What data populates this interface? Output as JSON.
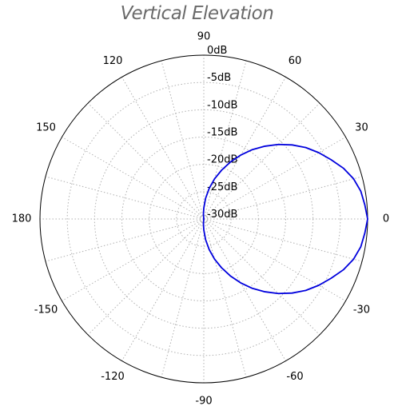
{
  "chart_data": {
    "type": "polar-line",
    "title": "Vertical Elevation",
    "angle_unit": "degrees",
    "angle_ticks": [
      "0",
      "30",
      "60",
      "90",
      "120",
      "150",
      "180",
      "-150",
      "-120",
      "-90",
      "-60",
      "-30"
    ],
    "angle_tick_values": [
      0,
      30,
      60,
      90,
      120,
      150,
      180,
      -150,
      -120,
      -90,
      -60,
      -30
    ],
    "radial_unit": "dB",
    "radial_range": [
      -30,
      0
    ],
    "radial_ticks": [
      "0dB",
      "-5dB",
      "-10dB",
      "-15dB",
      "-20dB",
      "-25dB",
      "-30dB"
    ],
    "radial_tick_values": [
      0,
      -5,
      -10,
      -15,
      -20,
      -25,
      -30
    ],
    "grid": true,
    "series": [
      {
        "color": "#0000dd",
        "angle_deg": [
          0,
          5,
          10,
          15,
          20,
          25,
          30,
          35,
          40,
          45,
          50,
          55,
          60,
          65,
          70,
          75,
          80,
          85,
          90,
          95,
          100,
          105,
          110,
          115,
          120,
          125,
          130,
          135,
          140,
          145,
          150,
          155,
          160,
          165,
          170,
          175,
          180,
          -175,
          -170,
          -165,
          -160,
          -155,
          -150,
          -145,
          -140,
          -135,
          -130,
          -125,
          -120,
          -115,
          -110,
          -105,
          -100,
          -95,
          -90,
          -85,
          -80,
          -75,
          -70,
          -65,
          -60,
          -55,
          -50,
          -45,
          -40,
          -35,
          -30,
          -25,
          -20,
          -15,
          -10,
          -5
        ],
        "gain_db": [
          0,
          -0.4,
          -0.8,
          -1.6,
          -2.8,
          -4.3,
          -5.7,
          -7.2,
          -8.9,
          -10.7,
          -12.6,
          -14.5,
          -16.5,
          -18.5,
          -20.5,
          -22.4,
          -24.3,
          -26.2,
          -28.0,
          -29.2,
          -30,
          -30,
          -30,
          -30,
          -30,
          -30,
          -30,
          -30,
          -30,
          -30,
          -30,
          -30,
          -30,
          -30,
          -30,
          -30,
          -30,
          -30,
          -30,
          -30,
          -30,
          -30,
          -30,
          -30,
          -30,
          -30,
          -30,
          -30,
          -30,
          -30,
          -30,
          -30,
          -30,
          -29.2,
          -28.0,
          -26.2,
          -24.3,
          -22.4,
          -20.5,
          -18.5,
          -16.5,
          -14.5,
          -12.6,
          -10.7,
          -8.9,
          -7.2,
          -5.7,
          -4.3,
          -2.8,
          -1.6,
          -0.8,
          -0.4
        ]
      }
    ]
  }
}
